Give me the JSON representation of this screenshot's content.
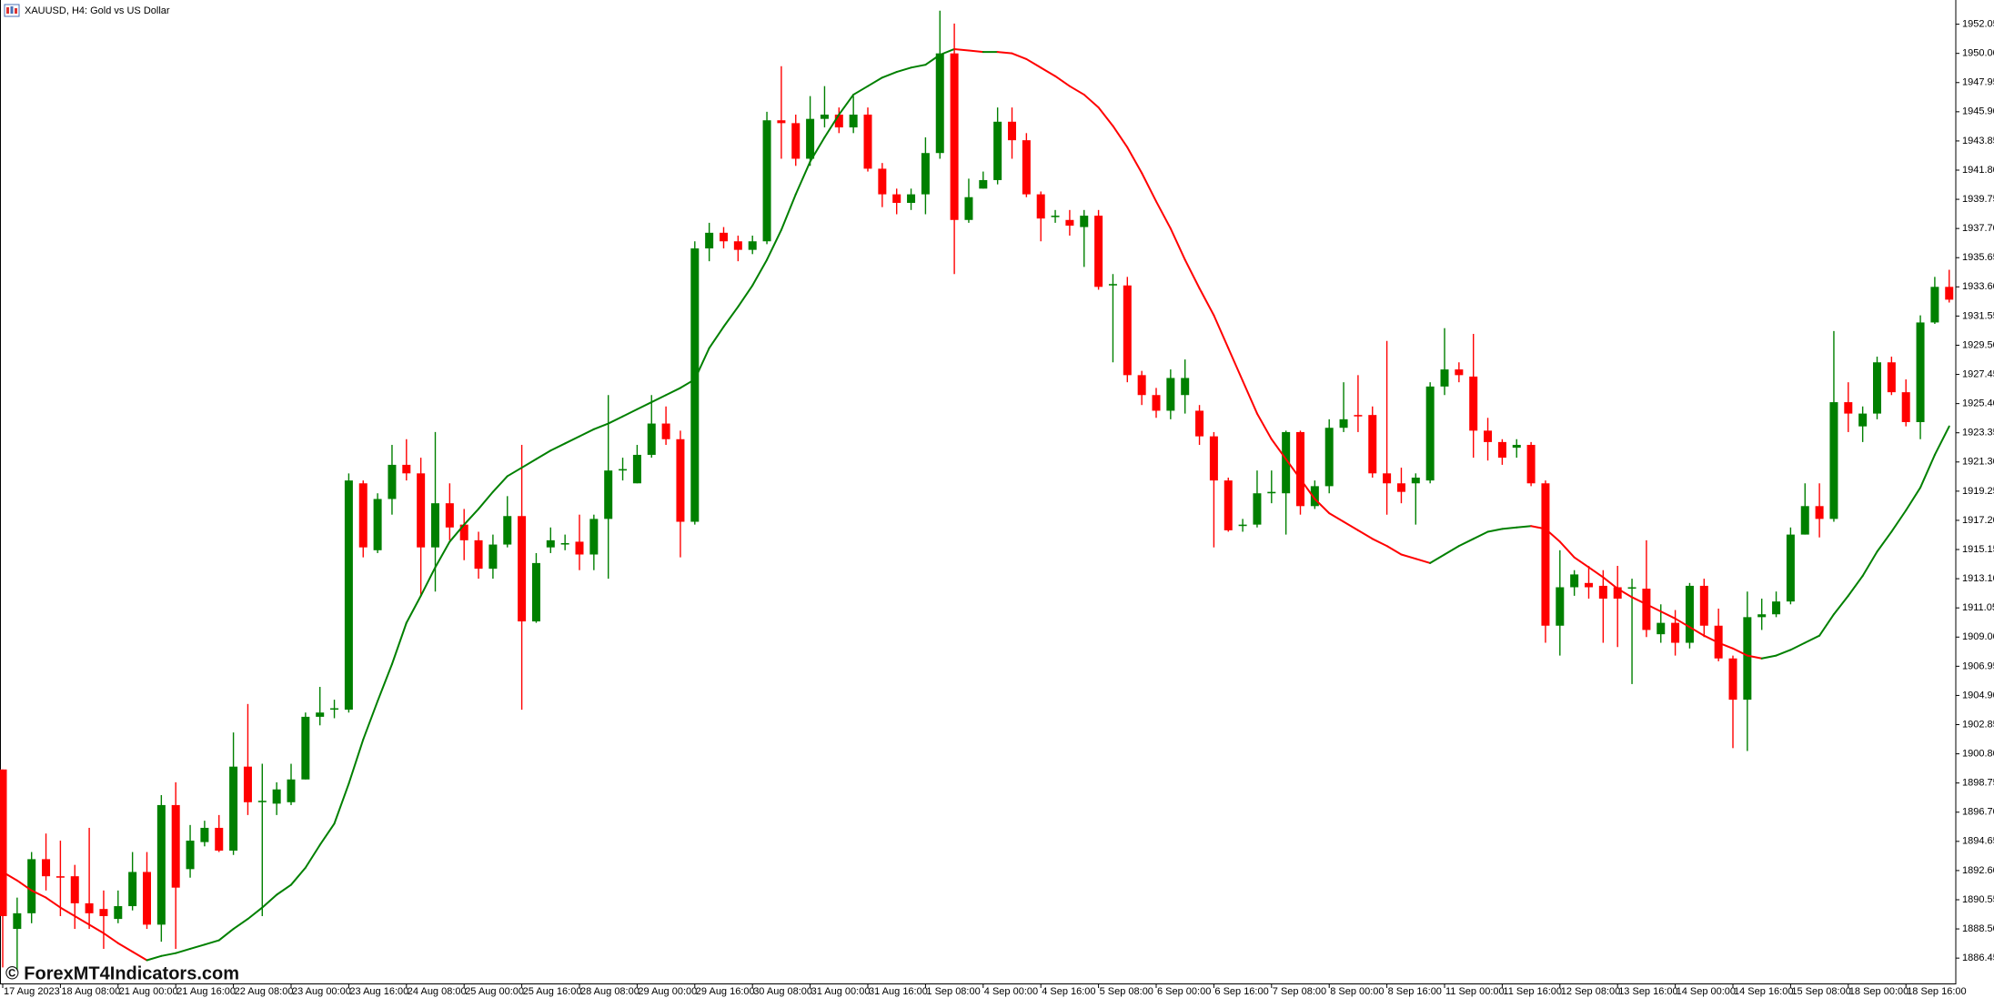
{
  "chart_data": {
    "type": "candlestick",
    "title": "XAUUSD, H4: Gold vs US Dollar",
    "watermark": "© ForexMT4Indicators.com",
    "up_color": "#008000",
    "down_color": "#ff0000",
    "ylim": [
      1884.67,
      1953.75
    ],
    "yticks": [
      1886.45,
      {
        "value": 1888.5,
        "label": "1888.50"
      },
      1890.55,
      {
        "value": 1892.6,
        "label": "1892.60"
      },
      1894.65,
      {
        "value": 1896.7,
        "label": "1896.70"
      },
      1898.75,
      {
        "value": 1900.8,
        "label": "1900.80"
      },
      1902.85,
      {
        "value": 1904.9,
        "label": "1904.90"
      },
      1906.95,
      {
        "value": 1909,
        "label": "1909.00"
      },
      1911.05,
      {
        "value": 1913.1,
        "label": "1913.10"
      },
      1915.15,
      {
        "value": 1917.2,
        "label": "1917.20"
      },
      1919.25,
      {
        "value": 1921.3,
        "label": "1921.30"
      },
      1923.35,
      {
        "value": 1925.4,
        "label": "1925.40"
      },
      1927.45,
      {
        "value": 1929.5,
        "label": "1929.50"
      },
      1931.55,
      {
        "value": 1933.6,
        "label": "1933.60"
      },
      1935.65,
      {
        "value": 1937.7,
        "label": "1937.70"
      },
      1939.75,
      {
        "value": 1941.8,
        "label": "1941.80"
      },
      1943.85,
      {
        "value": 1945.9,
        "label": "1945.90"
      },
      1947.95,
      {
        "value": 1950,
        "label": "1950.00"
      },
      1952.05
    ],
    "categories": [
      "17 Aug 2023",
      null,
      null,
      null,
      "18 Aug 08:00",
      null,
      null,
      null,
      "21 Aug 00:00",
      null,
      null,
      null,
      "21 Aug 16:00",
      null,
      null,
      null,
      "22 Aug 08:00",
      null,
      null,
      null,
      "23 Aug 00:00",
      null,
      null,
      null,
      "23 Aug 16:00",
      null,
      null,
      null,
      "24 Aug 08:00",
      null,
      null,
      null,
      "25 Aug 00:00",
      null,
      null,
      null,
      "25 Aug 16:00",
      null,
      null,
      null,
      "28 Aug 08:00",
      null,
      null,
      null,
      "29 Aug 00:00",
      null,
      null,
      null,
      "29 Aug 16:00",
      null,
      null,
      null,
      "30 Aug 08:00",
      null,
      null,
      null,
      "31 Aug 00:00",
      null,
      null,
      null,
      "31 Aug 16:00",
      null,
      null,
      null,
      "1 Sep 08:00",
      null,
      null,
      null,
      "4 Sep 00:00",
      null,
      null,
      null,
      "4 Sep 16:00",
      null,
      null,
      null,
      "5 Sep 08:00",
      null,
      null,
      null,
      "6 Sep 00:00",
      null,
      null,
      null,
      "6 Sep 16:00",
      null,
      null,
      null,
      "7 Sep 08:00",
      null,
      null,
      null,
      "8 Sep 00:00",
      null,
      null,
      null,
      "8 Sep 16:00",
      null,
      null,
      null,
      "11 Sep 00:00",
      null,
      null,
      null,
      "11 Sep 16:00",
      null,
      null,
      null,
      "12 Sep 08:00",
      null,
      null,
      null,
      "13 Sep 16:00",
      null,
      null,
      null,
      "14 Sep 00:00",
      null,
      null,
      null,
      "14 Sep 16:00",
      null,
      null,
      null,
      "15 Sep 08:00",
      null,
      null,
      null,
      "18 Sep 00:00",
      null,
      null,
      null,
      "18 Sep 16:00",
      null,
      null,
      null
    ],
    "open": [
      1899.7,
      1888.5,
      1889.6,
      1893.4,
      1892.2,
      1892.2,
      1890.3,
      1889.9,
      1889.2,
      1890.1,
      1892.5,
      1888.8,
      1897.2,
      1892.7,
      1894.6,
      1895.6,
      1894.0,
      1899.9,
      1897.4,
      1897.3,
      1897.4,
      1899.0,
      1903.4,
      1903.9,
      1903.9,
      1919.8,
      1915.1,
      1918.7,
      1921.1,
      1920.5,
      1915.3,
      1918.4,
      1916.9,
      1915.8,
      1913.8,
      1915.5,
      1917.5,
      1910.1,
      1915.3,
      1915.5,
      1915.7,
      1914.8,
      1917.3,
      1920.7,
      1919.8,
      1921.8,
      1924.0,
      1922.9,
      1917.1,
      1936.3,
      1937.4,
      1936.8,
      1936.2,
      1936.8,
      1945.3,
      1945.1,
      1942.6,
      1945.4,
      1945.7,
      1944.8,
      1945.7,
      1941.9,
      1940.1,
      1939.5,
      1940.1,
      1943.0,
      1950.0,
      1938.3,
      1940.5,
      1941.1,
      1945.2,
      1943.9,
      1940.1,
      1938.5,
      1938.3,
      1937.8,
      1938.6,
      1933.7,
      1933.7,
      1927.4,
      1926.0,
      1924.9,
      1926.0,
      1924.9,
      1923.1,
      1920.0,
      1916.8,
      1916.9,
      1919.1,
      1919.1,
      1923.4,
      1918.2,
      1919.6,
      1923.7,
      1924.6,
      1924.6,
      1920.5,
      1919.8,
      1919.8,
      1920.0,
      1926.6,
      1927.8,
      1927.3,
      1923.5,
      1922.7,
      1922.3,
      1922.5,
      1919.8,
      1909.8,
      1912.5,
      1912.8,
      1912.6,
      1912.5,
      1912.4,
      1912.4,
      1909.2,
      1910.0,
      1908.6,
      1912.6,
      1909.8,
      1907.5,
      1904.6,
      1910.4,
      1910.6,
      1911.5,
      1916.2,
      1918.2,
      1917.3,
      1925.5,
      1923.8,
      1924.7,
      1928.3,
      1926.2,
      1924.1,
      1931.1,
      1933.6
    ],
    "high": [
      1899.7,
      1890.7,
      1893.9,
      1895.2,
      1894.7,
      1893.0,
      1895.6,
      1891.2,
      1891.2,
      1893.9,
      1893.9,
      1897.9,
      1898.8,
      1895.8,
      1896.1,
      1896.5,
      1902.3,
      1904.3,
      1900.1,
      1898.8,
      1900.1,
      1903.7,
      1905.5,
      1904.6,
      1920.5,
      1920.0,
      1919.1,
      1922.5,
      1922.9,
      1921.6,
      1923.4,
      1919.8,
      1918.0,
      1916.4,
      1916.2,
      1918.9,
      1922.5,
      1914.9,
      1916.7,
      1916.2,
      1917.6,
      1917.6,
      1926.0,
      1921.6,
      1922.5,
      1926.0,
      1925.2,
      1923.5,
      1936.8,
      1938.1,
      1937.8,
      1937.2,
      1937.2,
      1945.9,
      1949.1,
      1945.7,
      1947.0,
      1947.7,
      1946.2,
      1947.0,
      1946.2,
      1942.3,
      1940.5,
      1940.5,
      1944.1,
      1953.0,
      1952.1,
      1941.2,
      1941.7,
      1946.2,
      1946.2,
      1944.4,
      1940.3,
      1939.0,
      1939.0,
      1939.0,
      1939.0,
      1934.5,
      1934.3,
      1927.7,
      1926.5,
      1927.8,
      1928.5,
      1925.3,
      1923.4,
      1920.2,
      1917.3,
      1920.7,
      1920.7,
      1923.5,
      1923.5,
      1920.0,
      1924.3,
      1926.9,
      1927.4,
      1925.2,
      1929.8,
      1920.9,
      1920.5,
      1926.9,
      1930.7,
      1928.3,
      1930.3,
      1924.4,
      1922.9,
      1922.9,
      1922.7,
      1920.0,
      1915.1,
      1913.7,
      1914.0,
      1913.7,
      1914.0,
      1913.1,
      1915.8,
      1911.3,
      1910.9,
      1912.8,
      1913.1,
      1911.0,
      1907.7,
      1912.2,
      1911.7,
      1912.2,
      1916.7,
      1919.8,
      1919.8,
      1930.5,
      1926.9,
      1925.2,
      1928.7,
      1928.7,
      1927.1,
      1931.6,
      1934.3,
      1934.8
    ],
    "low": [
      1885.8,
      1885.6,
      1888.9,
      1891.2,
      1889.4,
      1888.5,
      1888.5,
      1887.1,
      1888.9,
      1889.8,
      1888.5,
      1887.6,
      1887.1,
      1892.1,
      1894.3,
      1893.9,
      1893.7,
      1896.5,
      1889.4,
      1896.5,
      1897.2,
      1899.0,
      1902.8,
      1903.3,
      1903.7,
      1914.6,
      1914.9,
      1917.6,
      1920.0,
      1911.9,
      1912.2,
      1915.8,
      1914.4,
      1913.1,
      1913.1,
      1915.3,
      1903.9,
      1910.0,
      1914.9,
      1915.1,
      1913.7,
      1913.7,
      1913.1,
      1920.0,
      1919.8,
      1921.6,
      1922.5,
      1914.6,
      1916.9,
      1935.4,
      1936.3,
      1935.4,
      1935.9,
      1936.6,
      1942.6,
      1942.1,
      1942.1,
      1944.8,
      1944.4,
      1944.4,
      1941.7,
      1939.2,
      1938.7,
      1939.0,
      1938.7,
      1942.6,
      1934.5,
      1938.1,
      1940.5,
      1940.8,
      1942.6,
      1939.9,
      1936.8,
      1938.1,
      1937.2,
      1935.0,
      1933.4,
      1928.3,
      1926.9,
      1925.3,
      1924.4,
      1924.3,
      1924.7,
      1922.5,
      1915.3,
      1916.4,
      1916.4,
      1916.7,
      1918.4,
      1916.2,
      1917.6,
      1918.0,
      1919.1,
      1923.4,
      1923.4,
      1920.2,
      1917.6,
      1918.4,
      1916.9,
      1919.8,
      1926.0,
      1926.9,
      1921.6,
      1921.4,
      1921.1,
      1921.6,
      1919.6,
      1908.6,
      1907.7,
      1911.9,
      1911.7,
      1908.6,
      1908.3,
      1905.7,
      1909.0,
      1908.6,
      1907.7,
      1908.2,
      1909.0,
      1907.3,
      1901.2,
      1901.0,
      1909.5,
      1910.4,
      1911.3,
      1916.2,
      1916.0,
      1917.1,
      1923.4,
      1922.7,
      1924.3,
      1926.0,
      1923.8,
      1922.9,
      1931.0,
      1932.5
    ],
    "close": [
      1889.4,
      1889.6,
      1893.4,
      1892.2,
      1892.1,
      1890.3,
      1889.6,
      1889.4,
      1890.1,
      1892.5,
      1888.8,
      1897.2,
      1891.4,
      1894.7,
      1895.6,
      1894.0,
      1899.9,
      1897.4,
      1897.5,
      1898.3,
      1899.0,
      1903.4,
      1903.7,
      1904.0,
      1920.0,
      1915.3,
      1918.7,
      1921.1,
      1920.5,
      1915.3,
      1918.4,
      1916.7,
      1915.8,
      1913.8,
      1915.5,
      1917.5,
      1910.1,
      1914.2,
      1915.8,
      1915.6,
      1914.8,
      1917.3,
      1920.7,
      1920.8,
      1921.8,
      1924.0,
      1922.9,
      1917.1,
      1936.3,
      1937.4,
      1936.8,
      1936.2,
      1936.8,
      1945.3,
      1945.1,
      1942.6,
      1945.4,
      1945.7,
      1944.8,
      1945.7,
      1941.9,
      1940.1,
      1939.5,
      1940.1,
      1943.0,
      1950.0,
      1938.3,
      1939.9,
      1941.1,
      1945.2,
      1943.9,
      1940.1,
      1938.4,
      1938.6,
      1937.9,
      1938.6,
      1933.6,
      1933.8,
      1927.4,
      1926.0,
      1924.9,
      1927.2,
      1927.2,
      1923.1,
      1920.0,
      1916.5,
      1916.9,
      1919.1,
      1919.2,
      1923.4,
      1918.2,
      1919.6,
      1923.7,
      1924.3,
      1924.5,
      1920.5,
      1919.8,
      1919.2,
      1920.2,
      1926.6,
      1927.8,
      1927.4,
      1923.5,
      1922.7,
      1921.6,
      1922.5,
      1919.8,
      1909.8,
      1912.5,
      1913.4,
      1912.5,
      1911.7,
      1911.7,
      1912.5,
      1909.5,
      1910.0,
      1908.6,
      1912.6,
      1909.8,
      1907.5,
      1904.6,
      1910.4,
      1910.6,
      1911.5,
      1916.2,
      1918.2,
      1917.3,
      1925.5,
      1924.7,
      1924.7,
      1928.3,
      1926.2,
      1924.1,
      1931.1,
      1933.6,
      1932.7
    ],
    "ma": {
      "up_color": "#008000",
      "down_color": "#ff0000",
      "values": [
        1892.5,
        1891.9,
        1891.2,
        1890.7,
        1890.0,
        1889.4,
        1888.8,
        1888.2,
        1887.5,
        1886.9,
        1886.3,
        1886.6,
        1886.8,
        1887.1,
        1887.4,
        1887.7,
        1888.5,
        1889.2,
        1890.0,
        1890.9,
        1891.6,
        1892.8,
        1894.4,
        1895.9,
        1898.7,
        1901.8,
        1904.5,
        1907.1,
        1910.0,
        1911.9,
        1913.9,
        1915.7,
        1916.9,
        1918.0,
        1919.2,
        1920.3,
        1920.9,
        1921.5,
        1922.1,
        1922.6,
        1923.1,
        1923.6,
        1924.0,
        1924.5,
        1925.0,
        1925.5,
        1926.0,
        1926.5,
        1927.1,
        1929.3,
        1930.8,
        1932.2,
        1933.7,
        1935.5,
        1937.6,
        1940.1,
        1942.4,
        1944.1,
        1945.7,
        1947.1,
        1947.7,
        1948.3,
        1948.7,
        1949.0,
        1949.2,
        1949.9,
        1950.3,
        1950.2,
        1950.1,
        1950.1,
        1950.0,
        1949.6,
        1949.0,
        1948.4,
        1947.7,
        1947.1,
        1946.2,
        1944.9,
        1943.4,
        1941.6,
        1939.6,
        1937.7,
        1935.5,
        1933.5,
        1931.6,
        1929.3,
        1927.0,
        1924.7,
        1922.9,
        1921.5,
        1920.1,
        1918.7,
        1917.7,
        1917.1,
        1916.5,
        1915.9,
        1915.4,
        1914.8,
        1914.5,
        1914.2,
        1914.8,
        1915.4,
        1915.9,
        1916.4,
        1916.6,
        1916.7,
        1916.8,
        1916.6,
        1915.7,
        1914.6,
        1913.9,
        1913.2,
        1912.4,
        1911.8,
        1911.3,
        1910.8,
        1910.3,
        1909.7,
        1909.1,
        1908.6,
        1908.2,
        1907.7,
        1907.5,
        1907.7,
        1908.1,
        1908.6,
        1909.1,
        1910.6,
        1911.9,
        1913.3,
        1915.0,
        1916.4,
        1917.9,
        1919.5,
        1921.8,
        1923.8
      ]
    }
  }
}
